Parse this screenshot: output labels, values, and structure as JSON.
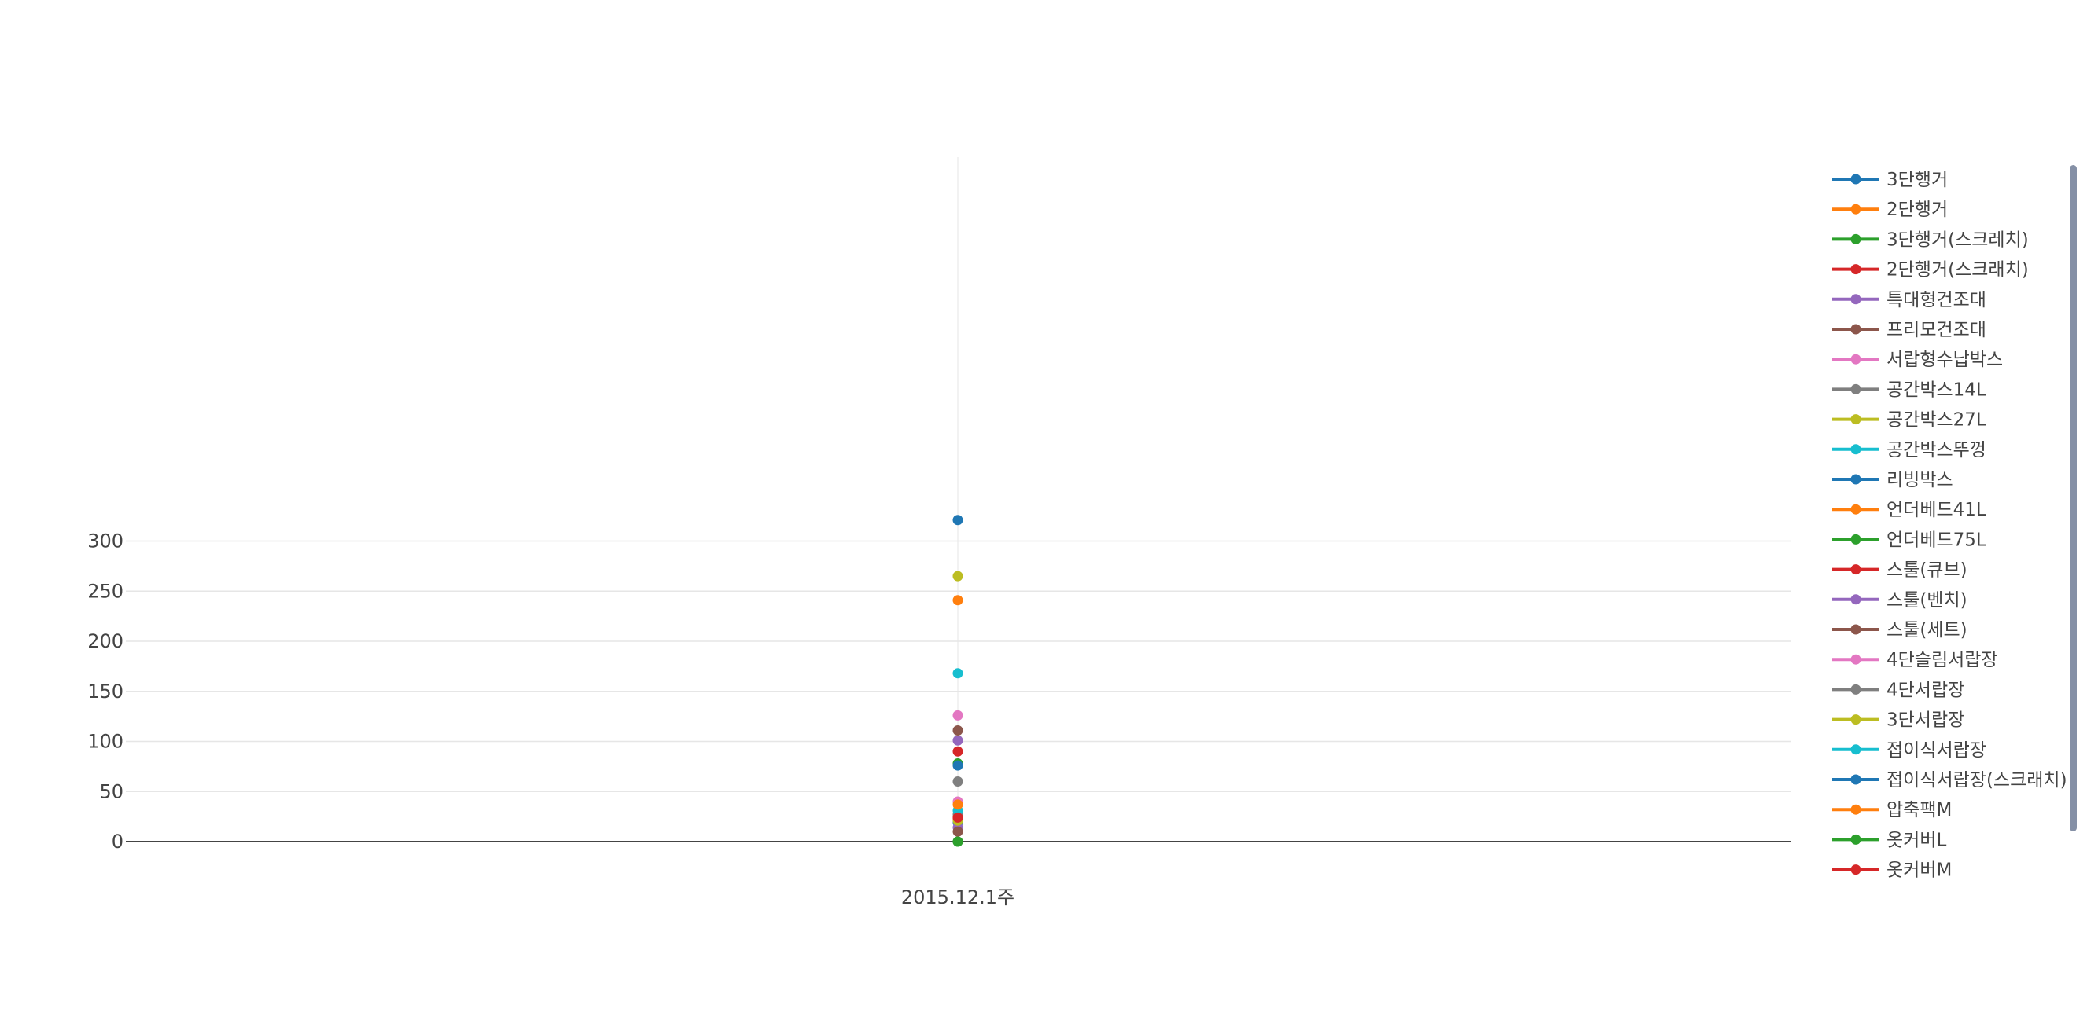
{
  "chart_data": {
    "type": "line",
    "title": "",
    "xlabel": "",
    "ylabel": "",
    "categories": [
      "2015.12.1주"
    ],
    "ylim": [
      0,
      345
    ],
    "yticks": [
      0,
      50,
      100,
      150,
      200,
      250,
      300
    ],
    "grid": true,
    "legend_position": "right",
    "series": [
      {
        "name": "3단행거",
        "color": "#1f77b4",
        "values": [
          19
        ]
      },
      {
        "name": "2단행거",
        "color": "#ff7f0e",
        "values": [
          241
        ]
      },
      {
        "name": "3단행거(스크레치)",
        "color": "#2ca02c",
        "values": [
          0
        ]
      },
      {
        "name": "2단행거(스크래치)",
        "color": "#d62728",
        "values": [
          90
        ]
      },
      {
        "name": "특대형건조대",
        "color": "#9467bd",
        "values": [
          101
        ]
      },
      {
        "name": "프리모건조대",
        "color": "#8c564b",
        "values": [
          111
        ]
      },
      {
        "name": "서랍형수납박스",
        "color": "#e377c2",
        "values": [
          126
        ]
      },
      {
        "name": "공간박스14L",
        "color": "#7f7f7f",
        "values": [
          60
        ]
      },
      {
        "name": "공간박스27L",
        "color": "#bcbd22",
        "values": [
          265
        ]
      },
      {
        "name": "공간박스뚜껑",
        "color": "#17becf",
        "values": [
          168
        ]
      },
      {
        "name": "리빙박스",
        "color": "#1f77b4",
        "values": [
          321
        ]
      },
      {
        "name": "언더베드41L",
        "color": "#ff7f0e",
        "values": [
          22
        ]
      },
      {
        "name": "언더베드75L",
        "color": "#2ca02c",
        "values": [
          78
        ]
      },
      {
        "name": "스툴(큐브)",
        "color": "#d62728",
        "values": [
          24
        ]
      },
      {
        "name": "스툴(벤치)",
        "color": "#9467bd",
        "values": [
          14
        ]
      },
      {
        "name": "스툴(세트)",
        "color": "#8c564b",
        "values": [
          10
        ]
      },
      {
        "name": "4단슬림서랍장",
        "color": "#e377c2",
        "values": [
          40
        ]
      },
      {
        "name": "4단서랍장",
        "color": "#7f7f7f",
        "values": [
          27
        ]
      },
      {
        "name": "3단서랍장",
        "color": "#bcbd22",
        "values": [
          21
        ]
      },
      {
        "name": "접이식서랍장",
        "color": "#17becf",
        "values": [
          31
        ]
      },
      {
        "name": "접이식서랍장(스크래치)",
        "color": "#1f77b4",
        "values": [
          76
        ]
      },
      {
        "name": "압축팩M",
        "color": "#ff7f0e",
        "values": [
          37
        ]
      },
      {
        "name": "옷커버L",
        "color": "#2ca02c",
        "values": [
          0
        ]
      },
      {
        "name": "옷커버M",
        "color": "#d62728",
        "values": [
          24
        ]
      }
    ]
  }
}
